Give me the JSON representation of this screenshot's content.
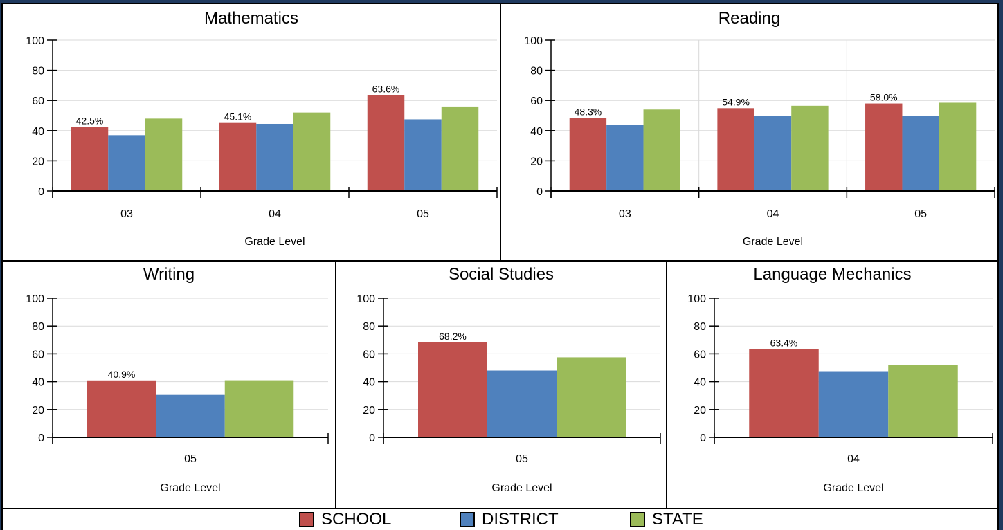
{
  "colors": {
    "school": "#c0504d",
    "district": "#4f81bd",
    "state": "#9bbb59"
  },
  "legend": [
    {
      "label": "SCHOOL",
      "color": "#c0504d"
    },
    {
      "label": "DISTRICT",
      "color": "#4f81bd"
    },
    {
      "label": "STATE",
      "color": "#9bbb59"
    }
  ],
  "chart_data": [
    {
      "type": "bar",
      "title": "Mathematics",
      "xlabel": "Grade Level",
      "ylabel": "",
      "ylim": [
        0,
        100
      ],
      "yticks": [
        0,
        20,
        40,
        60,
        80,
        100
      ],
      "categories": [
        "03",
        "04",
        "05"
      ],
      "series": [
        {
          "name": "SCHOOL",
          "values": [
            42.5,
            45.1,
            63.6
          ],
          "labels": [
            "42.5%",
            "45.1%",
            "63.6%"
          ]
        },
        {
          "name": "DISTRICT",
          "values": [
            37,
            44.5,
            47.5
          ]
        },
        {
          "name": "STATE",
          "values": [
            48,
            52,
            56
          ]
        }
      ],
      "grid": false
    },
    {
      "type": "bar",
      "title": "Reading",
      "xlabel": "Grade Level",
      "ylabel": "",
      "ylim": [
        0,
        100
      ],
      "yticks": [
        0,
        20,
        40,
        60,
        80,
        100
      ],
      "categories": [
        "03",
        "04",
        "05"
      ],
      "series": [
        {
          "name": "SCHOOL",
          "values": [
            48.3,
            54.9,
            58.0
          ],
          "labels": [
            "48.3%",
            "54.9%",
            "58.0%"
          ]
        },
        {
          "name": "DISTRICT",
          "values": [
            44,
            50,
            50
          ]
        },
        {
          "name": "STATE",
          "values": [
            54,
            56.5,
            58.5
          ]
        }
      ],
      "grid": true
    },
    {
      "type": "bar",
      "title": "Writing",
      "xlabel": "Grade Level",
      "ylabel": "",
      "ylim": [
        0,
        100
      ],
      "yticks": [
        0,
        20,
        40,
        60,
        80,
        100
      ],
      "categories": [
        "05"
      ],
      "series": [
        {
          "name": "SCHOOL",
          "values": [
            40.9
          ],
          "labels": [
            "40.9%"
          ]
        },
        {
          "name": "DISTRICT",
          "values": [
            30.5
          ]
        },
        {
          "name": "STATE",
          "values": [
            41
          ]
        }
      ],
      "grid": true
    },
    {
      "type": "bar",
      "title": "Social Studies",
      "xlabel": "Grade Level",
      "ylabel": "",
      "ylim": [
        0,
        100
      ],
      "yticks": [
        0,
        20,
        40,
        60,
        80,
        100
      ],
      "categories": [
        "05"
      ],
      "series": [
        {
          "name": "SCHOOL",
          "values": [
            68.2
          ],
          "labels": [
            "68.2%"
          ]
        },
        {
          "name": "DISTRICT",
          "values": [
            48
          ]
        },
        {
          "name": "STATE",
          "values": [
            57.5
          ]
        }
      ],
      "grid": true
    },
    {
      "type": "bar",
      "title": "Language Mechanics",
      "xlabel": "Grade Level",
      "ylabel": "",
      "ylim": [
        0,
        100
      ],
      "yticks": [
        0,
        20,
        40,
        60,
        80,
        100
      ],
      "categories": [
        "04"
      ],
      "series": [
        {
          "name": "SCHOOL",
          "values": [
            63.4
          ],
          "labels": [
            "63.4%"
          ]
        },
        {
          "name": "DISTRICT",
          "values": [
            47.5
          ]
        },
        {
          "name": "STATE",
          "values": [
            52
          ]
        }
      ],
      "grid": true
    }
  ]
}
